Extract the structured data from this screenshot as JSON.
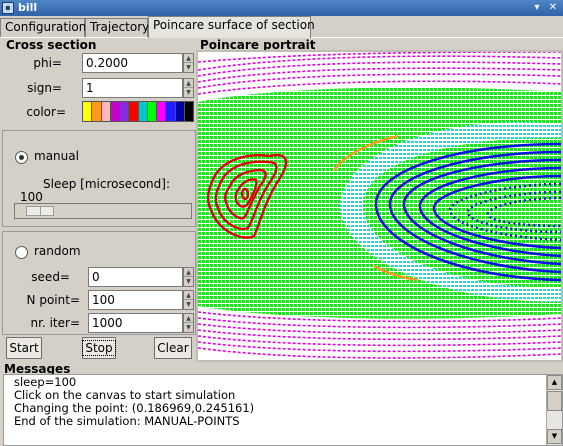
{
  "window": {
    "title": "bill",
    "icon": "app-icon",
    "controls": [
      "menu-arrow-icon",
      "close-icon"
    ]
  },
  "tabs": [
    {
      "label": "Configuration"
    },
    {
      "label": "Trajectory"
    },
    {
      "label": "Poincare surface of section",
      "active": true
    }
  ],
  "cross_section": {
    "title": "Cross section",
    "phi_label": "phi=",
    "phi_value": "0.2000",
    "sign_label": "sign=",
    "sign_value": "1",
    "color_label": "color=",
    "colors": [
      "#ffff00",
      "#ff9a1f",
      "#ffb6c1",
      "#c800c8",
      "#8a2be2",
      "#ff0000",
      "#00c8c8",
      "#00ff00",
      "#ff00ff",
      "#2020ff",
      "#0000a0",
      "#000000"
    ]
  },
  "manual": {
    "label": "manual",
    "selected": true,
    "sleep_label": "Sleep [microsecond]:",
    "sleep_value": "100",
    "slider_level": 0.06
  },
  "random": {
    "label": "random",
    "selected": false,
    "seed_label": "seed=",
    "seed_value": "0",
    "npoint_label": "N point=",
    "npoint_value": "100",
    "niter_label": "nr. iter=",
    "niter_value": "1000"
  },
  "buttons": {
    "start": "Start",
    "stop": "Stop",
    "clear": "Clear"
  },
  "portrait": {
    "title": "Poincare portrait",
    "colors": {
      "magenta": "#e000e0",
      "green": "#22e022",
      "cyan": "#00e6e6",
      "orange": "#ff9a1f",
      "blue": "#1010e0",
      "red": "#e00000"
    }
  },
  "messages": {
    "title": "Messages",
    "lines": [
      "sleep=100",
      "Click on the canvas to start simulation",
      "Changing the point: (0.186969,0.245161)",
      "End of the simulation: MANUAL-POINTS"
    ]
  }
}
